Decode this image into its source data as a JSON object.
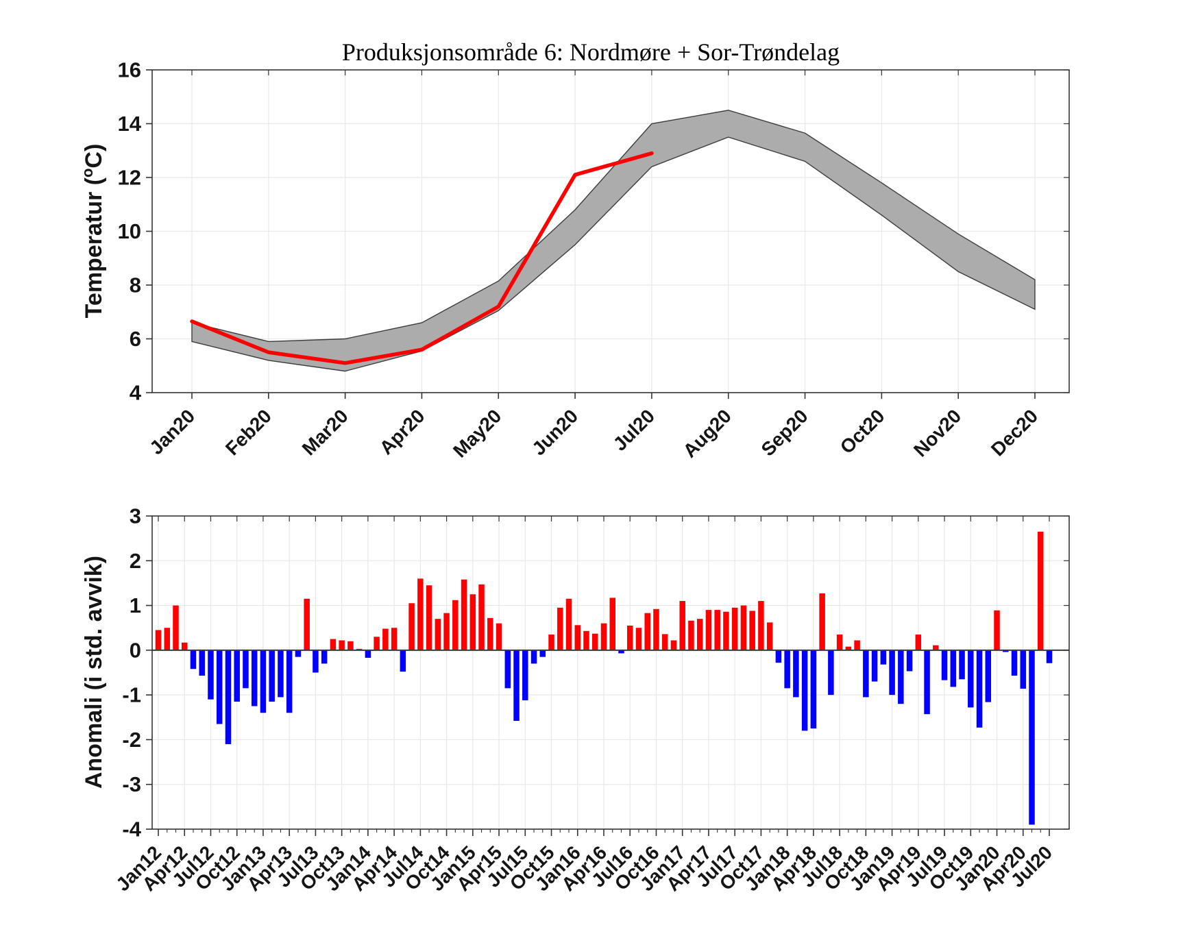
{
  "figure": {
    "background": "#FFFFFF",
    "frame_color": "#333333",
    "grid_color": "#E8E8E8",
    "tick_text_color": "#151515"
  },
  "labels": {
    "top_ylabel_pre": "Temperatur (",
    "top_ylabel_sup": "o",
    "top_ylabel_post": "C)",
    "bottom_ylabel": "Anomali (i std. avvik)"
  },
  "chart_data": [
    {
      "id": "temperature-climatology",
      "type": "area",
      "title": "Produksjonsområde 6: Nordmøre + Sor-Trøndelag",
      "xlabel": "",
      "ylabel": "Temperatur (°C)",
      "ylim": [
        4,
        16
      ],
      "yticks": [
        4,
        6,
        8,
        10,
        12,
        14,
        16
      ],
      "grid": true,
      "legend": "none",
      "band_fill_color": "#ACACAC",
      "band_edge_color": "#3C3C3C",
      "line_color": "#FF0000",
      "categories": [
        "Jan20",
        "Feb20",
        "Mar20",
        "Apr20",
        "May20",
        "Jun20",
        "Jul20",
        "Aug20",
        "Sep20",
        "Oct20",
        "Nov20",
        "Dec20"
      ],
      "series": [
        {
          "name": "historical-range-low",
          "values": [
            5.9,
            5.2,
            4.8,
            5.55,
            7.05,
            9.5,
            12.4,
            13.5,
            12.6,
            10.6,
            8.5,
            7.1
          ]
        },
        {
          "name": "historical-range-high",
          "values": [
            6.6,
            5.9,
            6.0,
            6.6,
            8.15,
            10.8,
            14.0,
            14.5,
            13.65,
            11.8,
            9.9,
            8.2
          ]
        },
        {
          "name": "temperature-2020",
          "values": [
            6.65,
            5.5,
            5.1,
            5.6,
            7.2,
            12.1,
            12.9
          ]
        }
      ]
    },
    {
      "id": "temperature-anomaly",
      "type": "bar",
      "title": "",
      "xlabel": "",
      "ylabel": "Anomali (i std. avvik)",
      "ylim": [
        -4,
        3
      ],
      "yticks": [
        3,
        2,
        1,
        0,
        -1,
        -2,
        -3,
        -4
      ],
      "grid": true,
      "legend": "none",
      "positive_color": "#FF0000",
      "negative_color": "#0000FF",
      "x_start": "Jan12",
      "x_end": "Jul20",
      "months_per_tick": 3,
      "xtick_labels": [
        "Jan12",
        "Apr12",
        "Jul12",
        "Oct12",
        "Jan13",
        "Apr13",
        "Jul13",
        "Oct13",
        "Jan14",
        "Apr14",
        "Jul14",
        "Oct14",
        "Jan15",
        "Apr15",
        "Jul15",
        "Oct15",
        "Jan16",
        "Apr16",
        "Jul16",
        "Oct16",
        "Jan17",
        "Apr17",
        "Jul17",
        "Oct17",
        "Jan18",
        "Apr18",
        "Jul18",
        "Oct18",
        "Jan19",
        "Apr19",
        "Jul19",
        "Oct19",
        "Jan20",
        "Apr20",
        "Jul20"
      ],
      "values": [
        0.45,
        0.5,
        1.0,
        0.17,
        -0.42,
        -0.57,
        -1.1,
        -1.65,
        -2.1,
        -1.15,
        -0.85,
        -1.25,
        -1.4,
        -1.15,
        -1.05,
        -1.4,
        -0.15,
        1.15,
        -0.5,
        -0.3,
        0.25,
        0.22,
        0.2,
        0.03,
        -0.17,
        0.3,
        0.48,
        0.5,
        -0.48,
        1.05,
        1.6,
        1.45,
        0.7,
        0.83,
        1.12,
        1.58,
        1.25,
        1.47,
        0.72,
        0.6,
        -0.85,
        -1.58,
        -1.12,
        -0.3,
        -0.15,
        0.35,
        0.95,
        1.15,
        0.56,
        0.43,
        0.37,
        0.6,
        1.17,
        -0.07,
        0.55,
        0.5,
        0.83,
        0.92,
        0.36,
        0.22,
        1.1,
        0.66,
        0.7,
        0.9,
        0.9,
        0.86,
        0.95,
        1.0,
        0.88,
        1.1,
        0.62,
        -0.28,
        -0.85,
        -1.05,
        -1.8,
        -1.75,
        1.27,
        -1.0,
        0.35,
        0.08,
        0.22,
        -1.05,
        -0.7,
        -0.32,
        -1.0,
        -1.2,
        -0.47,
        0.35,
        -1.43,
        0.11,
        -0.67,
        -0.82,
        -0.65,
        -1.28,
        -1.73,
        -1.16,
        0.89,
        -0.04,
        -0.57,
        -0.86,
        -3.9,
        2.65,
        -0.29
      ]
    }
  ]
}
